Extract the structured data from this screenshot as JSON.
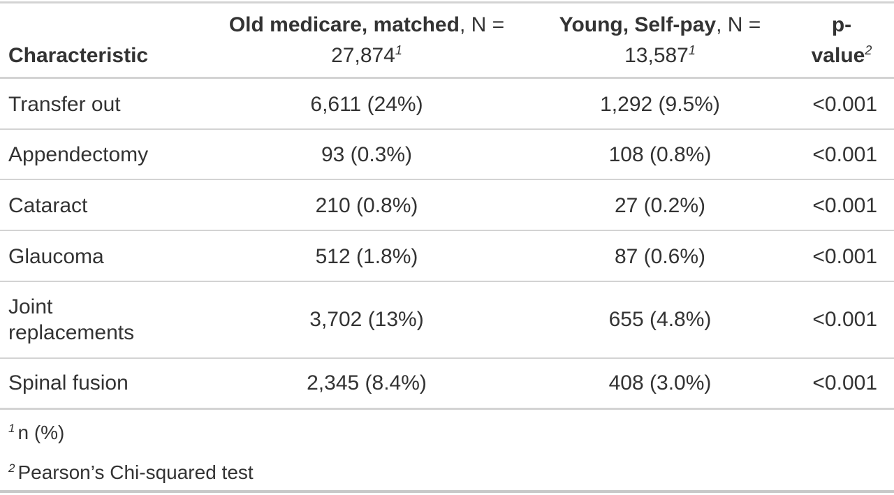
{
  "header": {
    "characteristic": "Characteristic",
    "col1_bold": "Old medicare, matched",
    "col1_n": ", N =",
    "col1_count": "27,874",
    "col1_sup": "1",
    "col2_bold": "Young, Self-pay",
    "col2_n": ", N =",
    "col2_count": "13,587",
    "col2_sup": "1",
    "col3_line1": "p-",
    "col3_line2": "value",
    "col3_sup": "2"
  },
  "rows": [
    {
      "label": "Transfer out",
      "old": "6,611 (24%)",
      "young": "1,292 (9.5%)",
      "p": "<0.001"
    },
    {
      "label": "Appendectomy",
      "old": "93 (0.3%)",
      "young": "108 (0.8%)",
      "p": "<0.001"
    },
    {
      "label": "Cataract",
      "old": "210 (0.8%)",
      "young": "27 (0.2%)",
      "p": "<0.001"
    },
    {
      "label": "Glaucoma",
      "old": "512 (1.8%)",
      "young": "87 (0.6%)",
      "p": "<0.001"
    },
    {
      "label_line1": "Joint",
      "label_line2": "replacements",
      "old": "3,702 (13%)",
      "young": "655 (4.8%)",
      "p": "<0.001"
    },
    {
      "label": "Spinal fusion",
      "old": "2,345 (8.4%)",
      "young": "408 (3.0%)",
      "p": "<0.001"
    }
  ],
  "footnotes": [
    {
      "marker": "1",
      "text": "n (%)"
    },
    {
      "marker": "2",
      "text": "Pearson’s Chi-squared test"
    }
  ]
}
